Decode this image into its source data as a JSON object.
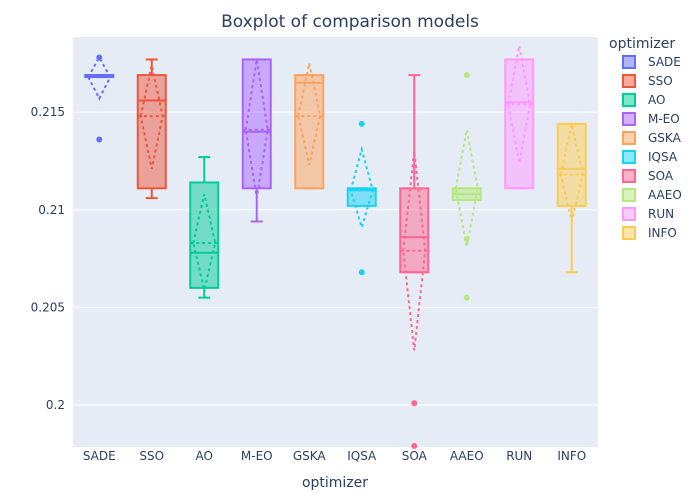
{
  "chart_data": {
    "type": "box",
    "title": "Boxplot of comparison models",
    "xlabel": "optimizer",
    "ylabel": "",
    "ylim": [
      0.19785,
      0.21885
    ],
    "yticks": [
      0.2,
      0.205,
      0.21,
      0.215
    ],
    "ytick_labels": [
      "0.2",
      "0.205",
      "0.21",
      "0.215"
    ],
    "legend": {
      "title": "optimizer",
      "placement": "right"
    },
    "grid": true,
    "plot_background": "#e5ecf6",
    "categories": [
      "SADE",
      "SSO",
      "AO",
      "M-EO",
      "GSKA",
      "IQSA",
      "SOA",
      "AAEO",
      "RUN",
      "INFO"
    ],
    "series": [
      {
        "name": "SADE",
        "color": "#636efa",
        "q1": 0.2168,
        "median": 0.2169,
        "q3": 0.2169,
        "lower_whisker": 0.2168,
        "upper_whisker": 0.2169,
        "mean": 0.2168,
        "sd_low": 0.2157,
        "sd_high": 0.2178,
        "outliers": [
          0.2136,
          0.2178
        ]
      },
      {
        "name": "SSO",
        "color": "#ef553b",
        "q1": 0.2111,
        "median": 0.2156,
        "q3": 0.2169,
        "lower_whisker": 0.2106,
        "upper_whisker": 0.2177,
        "mean": 0.2148,
        "sd_low": 0.2121,
        "sd_high": 0.2174,
        "outliers": []
      },
      {
        "name": "AO",
        "color": "#00cc96",
        "q1": 0.206,
        "median": 0.2078,
        "q3": 0.2114,
        "lower_whisker": 0.2055,
        "upper_whisker": 0.2127,
        "mean": 0.2083,
        "sd_low": 0.2059,
        "sd_high": 0.2108,
        "outliers": []
      },
      {
        "name": "M-EO",
        "color": "#ab63fa",
        "q1": 0.2111,
        "median": 0.214,
        "q3": 0.2177,
        "lower_whisker": 0.2094,
        "upper_whisker": 0.2177,
        "mean": 0.2141,
        "sd_low": 0.2106,
        "sd_high": 0.2177,
        "outliers": []
      },
      {
        "name": "GSKA",
        "color": "#ffa15a",
        "q1": 0.2111,
        "median": 0.2165,
        "q3": 0.2169,
        "lower_whisker": 0.2111,
        "upper_whisker": 0.2169,
        "mean": 0.2148,
        "sd_low": 0.2123,
        "sd_high": 0.2175,
        "outliers": []
      },
      {
        "name": "IQSA",
        "color": "#19d3f3",
        "q1": 0.2102,
        "median": 0.211,
        "q3": 0.2111,
        "lower_whisker": 0.2102,
        "upper_whisker": 0.2111,
        "mean": 0.211,
        "sd_low": 0.2091,
        "sd_high": 0.2131,
        "outliers": [
          0.2144,
          0.2068
        ]
      },
      {
        "name": "SOA",
        "color": "#ff6692",
        "q1": 0.2068,
        "median": 0.2086,
        "q3": 0.2111,
        "lower_whisker": 0.2068,
        "upper_whisker": 0.2169,
        "mean": 0.2079,
        "sd_low": 0.2028,
        "sd_high": 0.213,
        "outliers": [
          0.2001,
          0.1979
        ]
      },
      {
        "name": "AAEO",
        "color": "#b6e880",
        "q1": 0.2105,
        "median": 0.2108,
        "q3": 0.2111,
        "lower_whisker": 0.2105,
        "upper_whisker": 0.2111,
        "mean": 0.2111,
        "sd_low": 0.2081,
        "sd_high": 0.2141,
        "outliers": [
          0.2169,
          0.2085,
          0.2055
        ]
      },
      {
        "name": "RUN",
        "color": "#ff97ff",
        "q1": 0.2111,
        "median": 0.2155,
        "q3": 0.2177,
        "lower_whisker": 0.2111,
        "upper_whisker": 0.2177,
        "mean": 0.2154,
        "sd_low": 0.2124,
        "sd_high": 0.2184,
        "outliers": []
      },
      {
        "name": "INFO",
        "color": "#fecb52",
        "q1": 0.2102,
        "median": 0.2121,
        "q3": 0.2144,
        "lower_whisker": 0.2068,
        "upper_whisker": 0.2144,
        "mean": 0.2118,
        "sd_low": 0.2094,
        "sd_high": 0.2144,
        "outliers": []
      }
    ]
  }
}
